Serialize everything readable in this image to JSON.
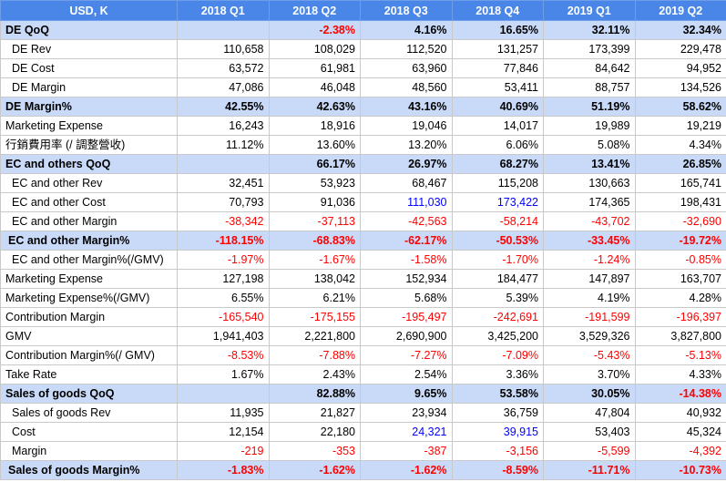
{
  "header": [
    "USD, K",
    "2018 Q1",
    "2018 Q2",
    "2018 Q3",
    "2018 Q4",
    "2019 Q1",
    "2019 Q2"
  ],
  "rows": [
    {
      "label": "DE QoQ",
      "band": true,
      "indent": false,
      "values": [
        "",
        "-2.38%",
        "4.16%",
        "16.65%",
        "32.11%",
        "32.34%"
      ],
      "colors": [
        "",
        "red",
        "",
        "",
        "",
        ""
      ]
    },
    {
      "label": "DE Rev",
      "band": false,
      "indent": true,
      "values": [
        "110,658",
        "108,029",
        "112,520",
        "131,257",
        "173,399",
        "229,478"
      ],
      "colors": [
        "",
        "",
        "",
        "",
        "",
        ""
      ]
    },
    {
      "label": "DE Cost",
      "band": false,
      "indent": true,
      "values": [
        "63,572",
        "61,981",
        "63,960",
        "77,846",
        "84,642",
        "94,952"
      ],
      "colors": [
        "",
        "",
        "",
        "",
        "",
        ""
      ]
    },
    {
      "label": "DE Margin",
      "band": false,
      "indent": true,
      "values": [
        "47,086",
        "46,048",
        "48,560",
        "53,411",
        "88,757",
        "134,526"
      ],
      "colors": [
        "",
        "",
        "",
        "",
        "",
        ""
      ]
    },
    {
      "label": "DE Margin%",
      "band": true,
      "indent": false,
      "values": [
        "42.55%",
        "42.63%",
        "43.16%",
        "40.69%",
        "51.19%",
        "58.62%"
      ],
      "colors": [
        "",
        "",
        "",
        "",
        "",
        ""
      ]
    },
    {
      "label": "Marketing Expense",
      "band": false,
      "indent": false,
      "values": [
        "16,243",
        "18,916",
        "19,046",
        "14,017",
        "19,989",
        "19,219"
      ],
      "colors": [
        "",
        "",
        "",
        "",
        "",
        ""
      ]
    },
    {
      "label": "行銷費用率 (/ 調整營收)",
      "band": false,
      "indent": false,
      "values": [
        "11.12%",
        "13.60%",
        "13.20%",
        "6.06%",
        "5.08%",
        "4.34%"
      ],
      "colors": [
        "",
        "",
        "",
        "",
        "",
        ""
      ]
    },
    {
      "label": "EC and others QoQ",
      "band": true,
      "indent": false,
      "values": [
        "",
        "66.17%",
        "26.97%",
        "68.27%",
        "13.41%",
        "26.85%"
      ],
      "colors": [
        "",
        "",
        "",
        "",
        "",
        ""
      ]
    },
    {
      "label": "EC and other Rev",
      "band": false,
      "indent": true,
      "values": [
        "32,451",
        "53,923",
        "68,467",
        "115,208",
        "130,663",
        "165,741"
      ],
      "colors": [
        "",
        "",
        "",
        "",
        "",
        ""
      ]
    },
    {
      "label": "EC and other Cost",
      "band": false,
      "indent": true,
      "values": [
        "70,793",
        "91,036",
        "111,030",
        "173,422",
        "174,365",
        "198,431"
      ],
      "colors": [
        "",
        "",
        "blue",
        "blue",
        "",
        ""
      ]
    },
    {
      "label": "EC and other Margin",
      "band": false,
      "indent": true,
      "values": [
        "-38,342",
        "-37,113",
        "-42,563",
        "-58,214",
        "-43,702",
        "-32,690"
      ],
      "colors": [
        "red",
        "red",
        "red",
        "red",
        "red",
        "red"
      ]
    },
    {
      "label": "EC and other  Margin%",
      "band": true,
      "indent": true,
      "values": [
        "-118.15%",
        "-68.83%",
        "-62.17%",
        "-50.53%",
        "-33.45%",
        "-19.72%"
      ],
      "colors": [
        "red",
        "red",
        "red",
        "red",
        "red",
        "red"
      ]
    },
    {
      "label": "EC and other  Margin%(/GMV)",
      "band": false,
      "indent": true,
      "values": [
        "-1.97%",
        "-1.67%",
        "-1.58%",
        "-1.70%",
        "-1.24%",
        "-0.85%"
      ],
      "colors": [
        "red",
        "red",
        "red",
        "red",
        "red",
        "red"
      ]
    },
    {
      "label": "Marketing Expense",
      "band": false,
      "indent": false,
      "values": [
        "127,198",
        "138,042",
        "152,934",
        "184,477",
        "147,897",
        "163,707"
      ],
      "colors": [
        "",
        "",
        "",
        "",
        "",
        ""
      ]
    },
    {
      "label": "Marketing Expense%(/GMV)",
      "band": false,
      "indent": false,
      "values": [
        "6.55%",
        "6.21%",
        "5.68%",
        "5.39%",
        "4.19%",
        "4.28%"
      ],
      "colors": [
        "",
        "",
        "",
        "",
        "",
        ""
      ]
    },
    {
      "label": "Contribution Margin",
      "band": false,
      "indent": false,
      "values": [
        "-165,540",
        "-175,155",
        "-195,497",
        "-242,691",
        "-191,599",
        "-196,397"
      ],
      "colors": [
        "red",
        "red",
        "red",
        "red",
        "red",
        "red"
      ]
    },
    {
      "label": "GMV",
      "band": false,
      "indent": false,
      "values": [
        "1,941,403",
        "2,221,800",
        "2,690,900",
        "3,425,200",
        "3,529,326",
        "3,827,800"
      ],
      "colors": [
        "",
        "",
        "",
        "",
        "",
        ""
      ]
    },
    {
      "label": "Contribution Margin%(/ GMV)",
      "band": false,
      "indent": false,
      "values": [
        "-8.53%",
        "-7.88%",
        "-7.27%",
        "-7.09%",
        "-5.43%",
        "-5.13%"
      ],
      "colors": [
        "red",
        "red",
        "red",
        "red",
        "red",
        "red"
      ]
    },
    {
      "label": "Take Rate",
      "band": false,
      "indent": false,
      "values": [
        "1.67%",
        "2.43%",
        "2.54%",
        "3.36%",
        "3.70%",
        "4.33%"
      ],
      "colors": [
        "",
        "",
        "",
        "",
        "",
        ""
      ]
    },
    {
      "label": "Sales of goods QoQ",
      "band": true,
      "indent": false,
      "values": [
        "",
        "82.88%",
        "9.65%",
        "53.58%",
        "30.05%",
        "-14.38%"
      ],
      "colors": [
        "",
        "",
        "",
        "",
        "",
        "red"
      ]
    },
    {
      "label": "Sales of goods Rev",
      "band": false,
      "indent": true,
      "values": [
        "11,935",
        "21,827",
        "23,934",
        "36,759",
        "47,804",
        "40,932"
      ],
      "colors": [
        "",
        "",
        "",
        "",
        "",
        ""
      ]
    },
    {
      "label": "Cost",
      "band": false,
      "indent": true,
      "values": [
        "12,154",
        "22,180",
        "24,321",
        "39,915",
        "53,403",
        "45,324"
      ],
      "colors": [
        "",
        "",
        "blue",
        "blue",
        "",
        ""
      ]
    },
    {
      "label": "Margin",
      "band": false,
      "indent": true,
      "values": [
        "-219",
        "-353",
        "-387",
        "-3,156",
        "-5,599",
        "-4,392"
      ],
      "colors": [
        "red",
        "red",
        "red",
        "red",
        "red",
        "red"
      ]
    },
    {
      "label": "Sales of goods Margin%",
      "band": true,
      "indent": true,
      "values": [
        "-1.83%",
        "-1.62%",
        "-1.62%",
        "-8.59%",
        "-11.71%",
        "-10.73%"
      ],
      "colors": [
        "red",
        "red",
        "red",
        "red",
        "red",
        "red"
      ]
    }
  ],
  "colors": {
    "header_bg": "#4a86e8",
    "band_bg": "#c9daf8",
    "negative": "#ff0000",
    "highlight": "#0000ff"
  }
}
